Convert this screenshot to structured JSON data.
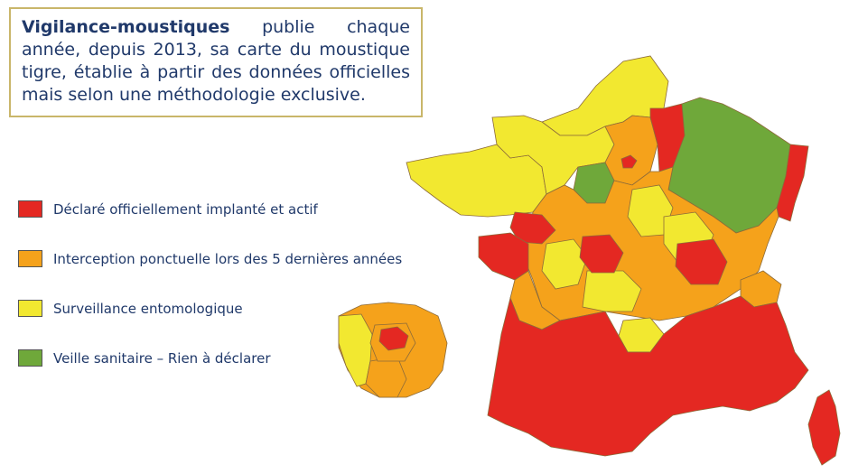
{
  "intro": {
    "brand": "Vigilance-moustiques",
    "text": " publie chaque année, depuis 2013, sa carte du moustique tigre, établie à partir des données officielles mais selon une méthodologie exclusive."
  },
  "legend": [
    {
      "label": "Déclaré officiellement implanté et actif",
      "color": "#e42822"
    },
    {
      "label": "Interception ponctuelle lors des 5 dernières années",
      "color": "#f5a21b"
    },
    {
      "label": "Surveillance entomologique",
      "color": "#f2e830"
    },
    {
      "label": "Veille sanitaire – Rien à déclarer",
      "color": "#6fa83a"
    }
  ],
  "colors": {
    "red": "#e42822",
    "orange": "#f5a21b",
    "yellow": "#f2e830",
    "green": "#6fa83a",
    "border": "#8c6b3a"
  }
}
